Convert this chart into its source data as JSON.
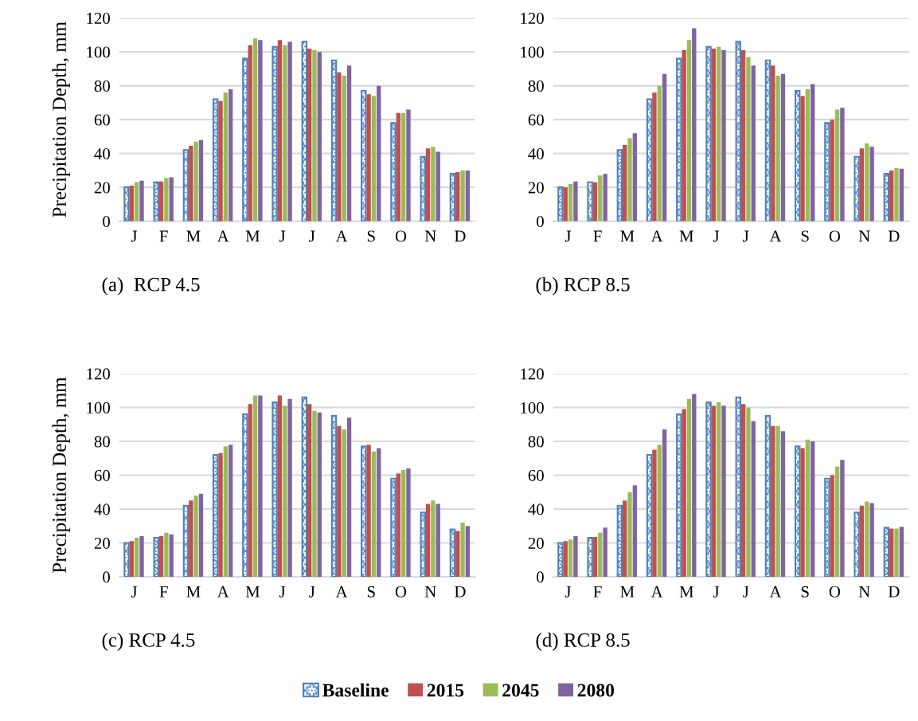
{
  "chart_data": [
    {
      "type": "bar",
      "ylabel": "Precipitation Depth, mm",
      "annotations": [
        "(a)  RCP 4.5"
      ],
      "categories": [
        "J",
        "F",
        "M",
        "A",
        "M",
        "J",
        "J",
        "A",
        "S",
        "O",
        "N",
        "D"
      ],
      "ylim": [
        0,
        120
      ],
      "yticks": [
        0,
        20,
        40,
        60,
        80,
        100,
        120
      ],
      "grid": "y",
      "legend": false,
      "series": [
        {
          "color": "#4f81bd",
          "values": [
            20,
            23,
            42,
            72,
            96,
            103,
            106,
            95,
            77,
            58,
            38,
            28
          ]
        },
        {
          "color": "#c0504d",
          "values": [
            21,
            23.5,
            44.5,
            71,
            104,
            107,
            102,
            88,
            75,
            64,
            43,
            29
          ]
        },
        {
          "color": "#9bbb59",
          "values": [
            23,
            25.5,
            47,
            76,
            108,
            104,
            101,
            86,
            74,
            64,
            44,
            30
          ]
        },
        {
          "color": "#8064a2",
          "values": [
            24,
            26,
            48,
            78,
            107,
            106,
            100,
            92,
            80,
            66,
            41,
            30
          ]
        }
      ]
    },
    {
      "type": "bar",
      "annotations": [
        "(b) RCP 8.5"
      ],
      "categories": [
        "J",
        "F",
        "M",
        "A",
        "M",
        "J",
        "J",
        "A",
        "S",
        "O",
        "N",
        "D"
      ],
      "ylim": [
        0,
        120
      ],
      "yticks": [
        0,
        20,
        40,
        60,
        80,
        100,
        120
      ],
      "grid": "y",
      "legend": false,
      "series": [
        {
          "color": "#4f81bd",
          "values": [
            20,
            23,
            42,
            72,
            96,
            103,
            106,
            95,
            77,
            58,
            38,
            28
          ]
        },
        {
          "color": "#c0504d",
          "values": [
            20,
            23,
            45,
            76,
            101,
            102,
            101,
            92,
            74,
            60,
            43,
            30
          ]
        },
        {
          "color": "#9bbb59",
          "values": [
            22,
            27,
            49,
            80,
            107,
            103,
            97,
            86,
            78,
            66,
            46,
            31.5
          ]
        },
        {
          "color": "#8064a2",
          "values": [
            23.5,
            28,
            52,
            87,
            114,
            101,
            92,
            87,
            81,
            67,
            44,
            31
          ]
        }
      ]
    },
    {
      "type": "bar",
      "ylabel": "Precipitation Depth, mm",
      "annotations": [
        "(c) RCP 4.5"
      ],
      "categories": [
        "J",
        "F",
        "M",
        "A",
        "M",
        "J",
        "J",
        "A",
        "S",
        "O",
        "N",
        "D"
      ],
      "ylim": [
        0,
        120
      ],
      "yticks": [
        0,
        20,
        40,
        60,
        80,
        100,
        120
      ],
      "grid": "y",
      "legend": false,
      "series": [
        {
          "color": "#4f81bd",
          "values": [
            20,
            23,
            42,
            72,
            96,
            103,
            106,
            95,
            77,
            58,
            38,
            28
          ]
        },
        {
          "color": "#c0504d",
          "values": [
            21,
            24,
            45,
            73,
            102,
            107,
            102,
            89,
            78,
            61,
            43,
            27
          ]
        },
        {
          "color": "#9bbb59",
          "values": [
            23,
            26,
            48,
            77,
            107,
            101,
            98,
            87,
            74,
            63,
            45,
            32
          ]
        },
        {
          "color": "#8064a2",
          "values": [
            24,
            25,
            49,
            78,
            107,
            105,
            97,
            94,
            76,
            64,
            43,
            30
          ]
        }
      ]
    },
    {
      "type": "bar",
      "annotations": [
        "(d) RCP 8.5"
      ],
      "categories": [
        "J",
        "F",
        "M",
        "A",
        "M",
        "J",
        "J",
        "A",
        "S",
        "O",
        "N",
        "D"
      ],
      "ylim": [
        0,
        120
      ],
      "yticks": [
        0,
        20,
        40,
        60,
        80,
        100,
        120
      ],
      "grid": "y",
      "legend": "bottom",
      "series": [
        {
          "name": "Baseline",
          "color": "#4f81bd",
          "values": [
            20,
            23,
            42,
            72,
            96,
            103,
            106,
            95,
            77,
            58,
            38,
            29
          ]
        },
        {
          "name": "2015",
          "color": "#c0504d",
          "values": [
            21,
            23.5,
            45,
            75,
            99,
            101,
            102,
            89,
            76,
            60,
            42,
            28.5
          ]
        },
        {
          "name": "2045",
          "color": "#9bbb59",
          "values": [
            22,
            26,
            50,
            78,
            105,
            103,
            100,
            89,
            81,
            65,
            44.5,
            28.5
          ]
        },
        {
          "name": "2080",
          "color": "#8064a2",
          "values": [
            24,
            29,
            54,
            87,
            108,
            101,
            92,
            86,
            80,
            69,
            43.5,
            29.5
          ]
        }
      ]
    }
  ]
}
